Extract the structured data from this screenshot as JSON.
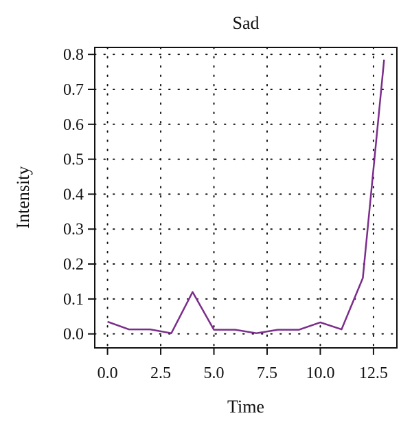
{
  "chart_data": {
    "type": "line",
    "title": "Sad",
    "xlabel": "Time",
    "ylabel": "Intensity",
    "xlim": [
      -0.6,
      13.6
    ],
    "ylim": [
      -0.04,
      0.82
    ],
    "xticks": [
      0.0,
      2.5,
      5.0,
      7.5,
      10.0,
      12.5
    ],
    "xtick_labels": [
      "0.0",
      "2.5",
      "5.0",
      "7.5",
      "10.0",
      "12.5"
    ],
    "yticks": [
      0.0,
      0.1,
      0.2,
      0.3,
      0.4,
      0.5,
      0.6,
      0.7,
      0.8
    ],
    "ytick_labels": [
      "0.0",
      "0.1",
      "0.2",
      "0.3",
      "0.4",
      "0.5",
      "0.6",
      "0.7",
      "0.8"
    ],
    "grid": true,
    "grid_style": "dotted",
    "line_color": "#7B2D8B",
    "x": [
      0,
      1,
      2,
      3,
      4,
      5,
      6,
      7,
      8,
      9,
      10,
      11,
      12,
      13
    ],
    "y": [
      0.035,
      0.013,
      0.013,
      0.002,
      0.12,
      0.012,
      0.012,
      0.002,
      0.012,
      0.012,
      0.033,
      0.013,
      0.16,
      0.785
    ]
  }
}
